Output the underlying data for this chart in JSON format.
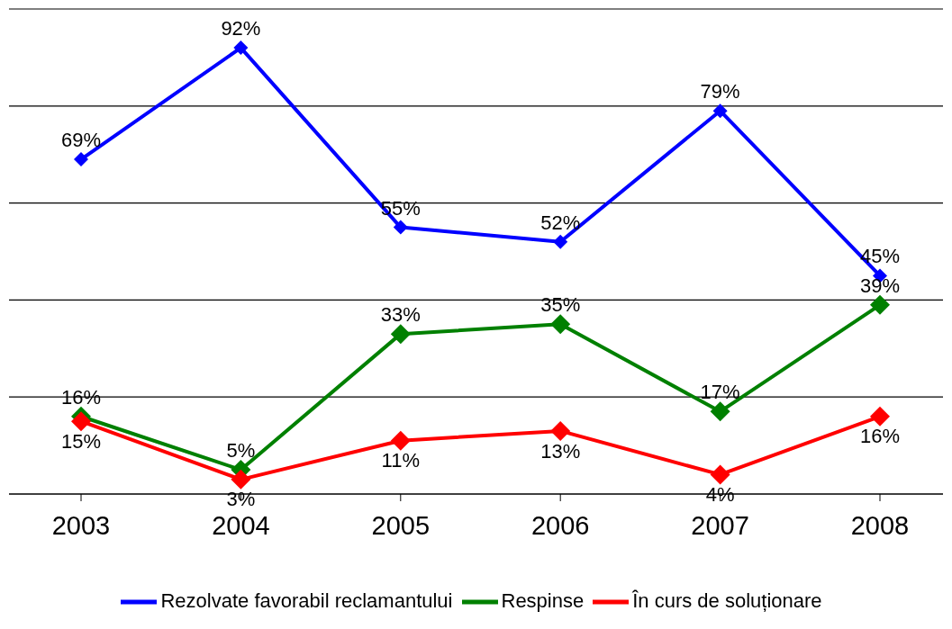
{
  "chart_data": {
    "type": "line",
    "categories": [
      "2003",
      "2004",
      "2005",
      "2006",
      "2007",
      "2008"
    ],
    "series": [
      {
        "name": "Rezolvate favorabil reclamantului",
        "color": "#0000ff",
        "values": [
          69,
          92,
          55,
          52,
          79,
          45
        ],
        "value_labels": [
          "69%",
          "92%",
          "55%",
          "52%",
          "79%",
          "45%"
        ]
      },
      {
        "name": "Respinse",
        "color": "#008000",
        "values": [
          16,
          5,
          33,
          35,
          17,
          39
        ],
        "value_labels": [
          "16%",
          "5%",
          "33%",
          "35%",
          "17%",
          "39%"
        ]
      },
      {
        "name": "În curs de soluționare",
        "color": "#ff0000",
        "values": [
          15,
          3,
          11,
          13,
          4,
          16
        ],
        "value_labels": [
          "15%",
          "3%",
          "11%",
          "13%",
          "4%",
          "16%"
        ]
      }
    ],
    "grid": "y",
    "tick_labels": "x",
    "marker": "diamond",
    "legend": "bottom"
  }
}
